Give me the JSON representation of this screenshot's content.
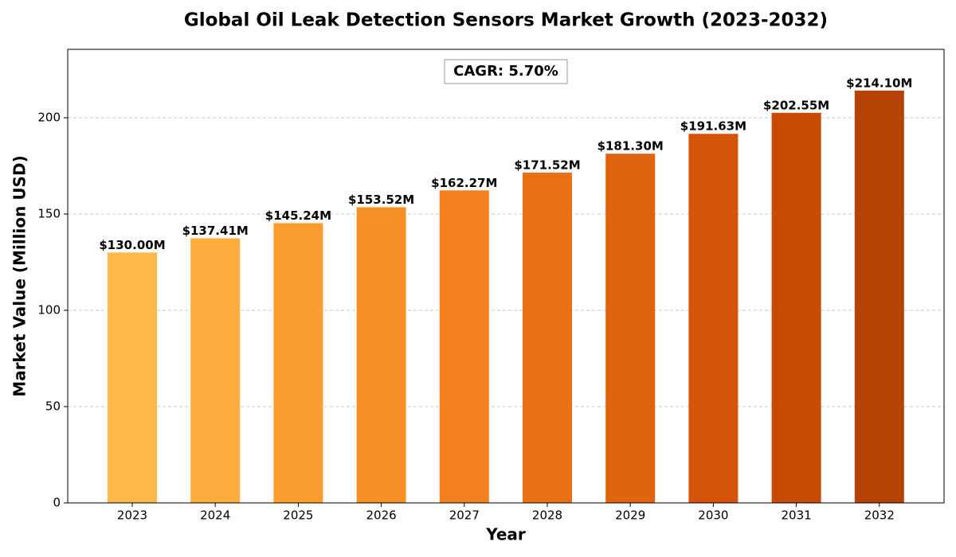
{
  "chart_data": {
    "type": "bar",
    "title": "Global Oil Leak Detection Sensors Market Growth (2023-2032)",
    "x_label": "Year",
    "y_label": "Market Value (Million USD)",
    "annotation": "CAGR: 5.70%",
    "categories": [
      "2023",
      "2024",
      "2025",
      "2026",
      "2027",
      "2028",
      "2029",
      "2030",
      "2031",
      "2032"
    ],
    "values": [
      130.0,
      137.41,
      145.24,
      153.52,
      162.27,
      171.52,
      181.3,
      191.63,
      202.55,
      214.1
    ],
    "value_labels": [
      "$130.00M",
      "$137.41M",
      "$145.24M",
      "$153.52M",
      "$162.27M",
      "$171.52M",
      "$181.30M",
      "$191.63M",
      "$202.55M",
      "$214.10M"
    ],
    "colors": [
      "#ffb84a",
      "#fdac3e",
      "#fb9c2e",
      "#f68f24",
      "#f2801f",
      "#ea7016",
      "#e0630f",
      "#d4550a",
      "#c84b04",
      "#b54305"
    ],
    "ylim": [
      0,
      235.51
    ],
    "yticks": [
      0,
      50,
      100,
      150,
      200
    ],
    "grid": true
  }
}
